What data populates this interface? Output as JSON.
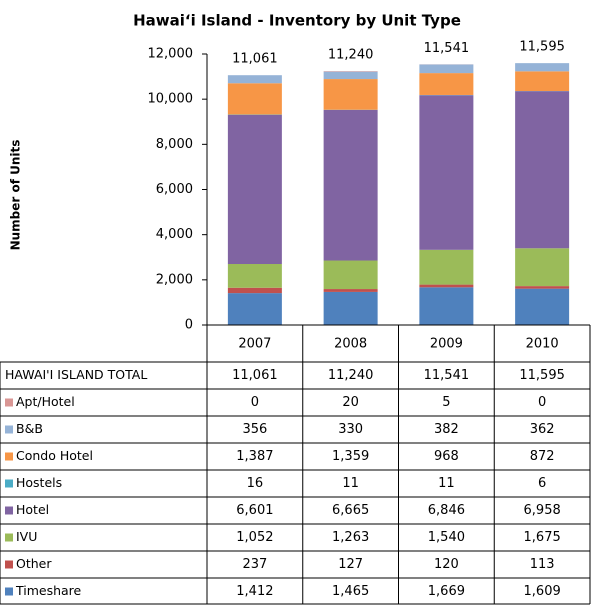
{
  "chart_data": {
    "type": "stacked_bar",
    "title": "Hawai‘i Island - Inventory by Unit Type",
    "y_label": "Number of Units",
    "categories": [
      "2007",
      "2008",
      "2009",
      "2010"
    ],
    "ylim": [
      0,
      12000
    ],
    "yticks": [
      0,
      {
        "value": 2000,
        "label": "2,000"
      },
      {
        "value": 4000,
        "label": "4,000"
      },
      {
        "value": 6000,
        "label": "6,000"
      },
      {
        "value": 8000,
        "label": "8,000"
      },
      {
        "value": 10000,
        "label": "10,000"
      },
      {
        "value": 12000,
        "label": "12,000"
      }
    ],
    "total": {
      "name": "HAWAI'I ISLAND TOTAL",
      "values": [
        11061,
        11240,
        11541,
        11595
      ],
      "value_labels": [
        "11,061",
        "11,240",
        "11,541",
        "11,595"
      ]
    },
    "series": [
      {
        "name": "Apt/Hotel",
        "color": "#d99694",
        "values": [
          0,
          20,
          5,
          0
        ],
        "value_labels": [
          "0",
          "20",
          "5",
          "0"
        ]
      },
      {
        "name": "B&B",
        "color": "#95b3d7",
        "values": [
          356,
          330,
          382,
          362
        ],
        "value_labels": [
          "356",
          "330",
          "382",
          "362"
        ]
      },
      {
        "name": "Condo Hotel",
        "color": "#f79646",
        "values": [
          1387,
          1359,
          968,
          872
        ],
        "value_labels": [
          "1,387",
          "1,359",
          "968",
          "872"
        ]
      },
      {
        "name": "Hostels",
        "color": "#4bacc6",
        "values": [
          16,
          11,
          11,
          6
        ],
        "value_labels": [
          "16",
          "11",
          "11",
          "6"
        ]
      },
      {
        "name": "Hotel",
        "color": "#8064a2",
        "values": [
          6601,
          6665,
          6846,
          6958
        ],
        "value_labels": [
          "6,601",
          "6,665",
          "6,846",
          "6,958"
        ]
      },
      {
        "name": "IVU",
        "color": "#9bbb59",
        "values": [
          1052,
          1263,
          1540,
          1675
        ],
        "value_labels": [
          "1,052",
          "1,263",
          "1,540",
          "1,675"
        ]
      },
      {
        "name": "Other",
        "color": "#c0504d",
        "values": [
          237,
          127,
          120,
          113
        ],
        "value_labels": [
          "237",
          "127",
          "120",
          "113"
        ]
      },
      {
        "name": "Timeshare",
        "color": "#4f81bd",
        "values": [
          1412,
          1465,
          1669,
          1609
        ],
        "value_labels": [
          "1,412",
          "1,465",
          "1,669",
          "1,609"
        ]
      }
    ]
  }
}
